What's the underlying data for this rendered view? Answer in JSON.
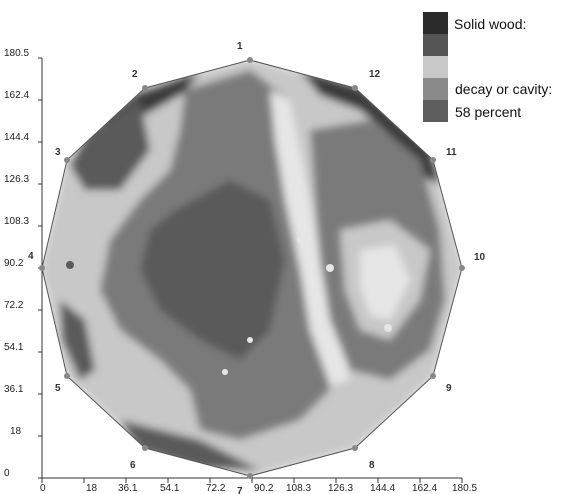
{
  "y_ticks": [
    "180.5",
    "162.4",
    "144.4",
    "126.3",
    "108.3",
    "90.2",
    "72.2",
    "54.1",
    "36.1",
    "18",
    "0"
  ],
  "x_ticks": [
    "0",
    "18",
    "36.1",
    "54.1",
    "72.2",
    "90.2",
    "108.3",
    "126.3",
    "144.4",
    "162.4",
    "180.5"
  ],
  "sensors": [
    "1",
    "2",
    "3",
    "4",
    "5",
    "6",
    "7",
    "8",
    "9",
    "10",
    "11",
    "12"
  ],
  "legend": {
    "title": "Solid wood:",
    "label_decay": "decay or cavity:",
    "percent": "58 percent",
    "colors": [
      "#2b2b2b",
      "#555555",
      "#c9c9c9",
      "#8a8a8a",
      "#5e5e5e"
    ]
  },
  "tomogram_colors": {
    "solid": "#3a3a3a",
    "medium_dark": "#5a5a5a",
    "medium": "#7a7a7a",
    "light": "#c8c8c8",
    "very_light": "#e6e6e6",
    "outline": "#555555"
  }
}
